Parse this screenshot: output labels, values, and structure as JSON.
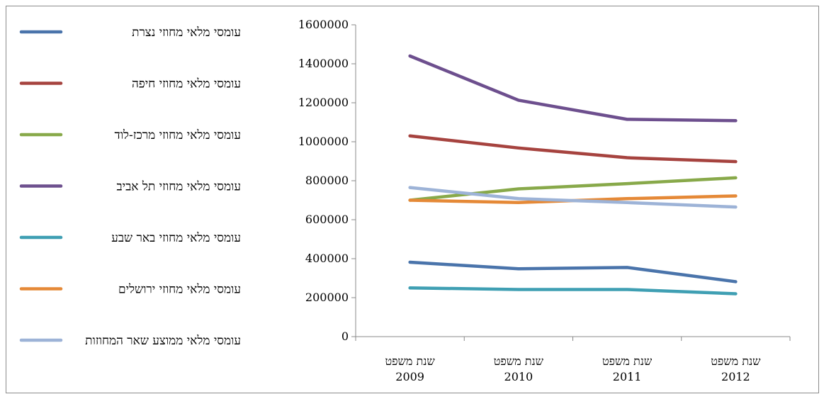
{
  "chart_data": {
    "type": "line",
    "categories": [
      "שנת משפט 2009",
      "שנת משפט 2010",
      "שנת משפט 2011",
      "שנת משפט 2012"
    ],
    "category_lines": [
      [
        "שנת משפט",
        "2009"
      ],
      [
        "שנת משפט",
        "2010"
      ],
      [
        "שנת משפט",
        "2011"
      ],
      [
        "שנת משפט",
        "2012"
      ]
    ],
    "ylim": [
      0,
      1600000
    ],
    "yticks": [
      0,
      200000,
      400000,
      600000,
      800000,
      1000000,
      1200000,
      1400000,
      1600000
    ],
    "ytick_labels": [
      "0",
      "200000",
      "400000",
      "600000",
      "800000",
      "1000000",
      "1200000",
      "1400000",
      "1600000"
    ],
    "legend_position": "left",
    "grid": false,
    "series": [
      {
        "name": "עומסי מלאי מחוזי נצרת",
        "color": "#4a74ab",
        "values": [
          382000,
          348000,
          355000,
          282000
        ]
      },
      {
        "name": "עומסי מלאי מחוזי חיפה",
        "color": "#a6433f",
        "values": [
          1030000,
          968000,
          918000,
          898000
        ]
      },
      {
        "name": "עומסי מלאי מחוזי מרכז-לוד",
        "color": "#88a94a",
        "values": [
          700000,
          758000,
          785000,
          815000
        ]
      },
      {
        "name": "עומסי מלאי מחוזי תל אביב",
        "color": "#6d4f8e",
        "values": [
          1440000,
          1213000,
          1115000,
          1108000
        ]
      },
      {
        "name": "עומסי מלאי מחוזי באר שבע",
        "color": "#3f9fb3",
        "values": [
          250000,
          242000,
          242000,
          220000
        ]
      },
      {
        "name": "עומסי מלאי מחוזי ירושלים",
        "color": "#e58937",
        "values": [
          700000,
          688000,
          708000,
          722000
        ]
      },
      {
        "name": "עומסי מלאי ממוצע שאר המחוזות",
        "color": "#9db3d7",
        "values": [
          765000,
          708000,
          688000,
          665000
        ]
      }
    ]
  }
}
